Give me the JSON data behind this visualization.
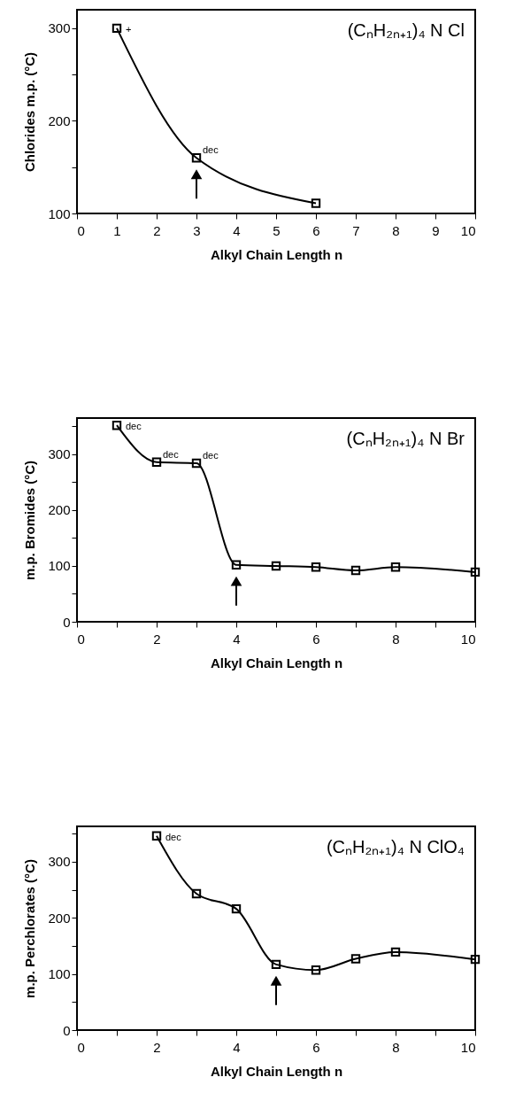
{
  "chart_data": [
    {
      "type": "line",
      "xlabel": "Alkyl Chain Length n",
      "ylabel": "Chlorides m.p. (°C)",
      "x": [
        1,
        3,
        6
      ],
      "series": [
        {
          "color": "#000000",
          "values": [
            300,
            160,
            111
          ]
        }
      ],
      "xlim": [
        0,
        10
      ],
      "ylim": [
        100,
        320
      ],
      "xticks": [
        0,
        1,
        2,
        3,
        4,
        5,
        6,
        7,
        8,
        9,
        10
      ],
      "yticks": [
        100,
        {
          "value": 150,
          "label": null
        },
        200,
        {
          "value": 250,
          "label": null
        },
        300
      ],
      "annotations": [
        "(CₙH₂ₙ₊₁)₄ N Cl",
        {
          "text": "+",
          "x": 1,
          "y": 300
        },
        {
          "text": "dec",
          "x": 3,
          "y": 160
        }
      ],
      "marker": "square",
      "line_style": "solid",
      "grid": false,
      "legend": false
    },
    {
      "type": "line",
      "xlabel": "Alkyl Chain Length n",
      "ylabel": "m.p. Bromides (°C)",
      "x": [
        1,
        2,
        3,
        4,
        5,
        6,
        7,
        8,
        10
      ],
      "series": [
        {
          "color": "#000000",
          "values": [
            352,
            286,
            284,
            102,
            100,
            98,
            92,
            98,
            89
          ]
        }
      ],
      "xlim": [
        0,
        10
      ],
      "ylim": [
        0,
        365
      ],
      "xticks": [
        0,
        {
          "value": 1,
          "label": null
        },
        2,
        {
          "value": 3,
          "label": null
        },
        4,
        {
          "value": 5,
          "label": null
        },
        6,
        {
          "value": 7,
          "label": null
        },
        8,
        {
          "value": 9,
          "label": null
        },
        10
      ],
      "yticks": [
        0,
        {
          "value": 50,
          "label": null
        },
        100,
        {
          "value": 150,
          "label": null
        },
        200,
        {
          "value": 250,
          "label": null
        },
        300,
        {
          "value": 350,
          "label": null
        }
      ],
      "annotations": [
        "(CₙH₂ₙ₊₁)₄ N Br",
        {
          "text": "dec",
          "x": 1,
          "y": 352
        },
        {
          "text": "dec",
          "x": 2,
          "y": 286
        },
        {
          "text": "dec",
          "x": 3,
          "y": 284
        }
      ],
      "marker": "square",
      "line_style": "solid",
      "grid": false,
      "legend": false
    },
    {
      "type": "line",
      "xlabel": "Alkyl Chain Length n",
      "ylabel": "m.p. Perchlorates (°C)",
      "x": [
        2,
        3,
        4,
        5,
        6,
        7,
        8,
        10
      ],
      "series": [
        {
          "color": "#000000",
          "values": [
            346,
            243,
            216,
            117,
            107,
            127,
            139,
            126
          ]
        }
      ],
      "xlim": [
        0,
        10
      ],
      "ylim": [
        0,
        363
      ],
      "xticks": [
        0,
        {
          "value": 1,
          "label": null
        },
        2,
        {
          "value": 3,
          "label": null
        },
        4,
        {
          "value": 5,
          "label": null
        },
        6,
        {
          "value": 7,
          "label": null
        },
        8,
        {
          "value": 9,
          "label": null
        },
        10
      ],
      "yticks": [
        0,
        {
          "value": 50,
          "label": null
        },
        100,
        {
          "value": 150,
          "label": null
        },
        200,
        {
          "value": 250,
          "label": null
        },
        300,
        {
          "value": 350,
          "label": null
        }
      ],
      "annotations": [
        "(CₙH₂ₙ₊₁)₄ N ClO₄",
        {
          "text": "dec",
          "x": 2,
          "y": 346
        }
      ],
      "marker": "square",
      "line_style": "solid",
      "grid": false,
      "legend": false
    }
  ]
}
